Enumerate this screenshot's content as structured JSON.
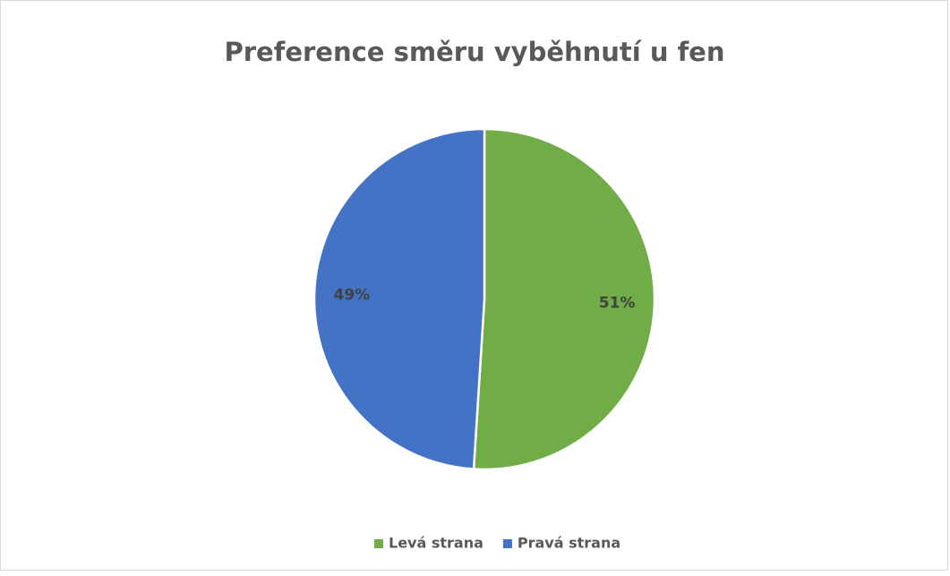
{
  "chart_data": {
    "type": "pie",
    "title": "Preference směru vyběhnutí u fen",
    "categories": [
      "Levá strana",
      "Pravá strana"
    ],
    "values": [
      51,
      49
    ],
    "value_labels": [
      "51%",
      "49%"
    ],
    "colors": [
      "#70ad47",
      "#4472c4"
    ],
    "legend": "bottom"
  }
}
